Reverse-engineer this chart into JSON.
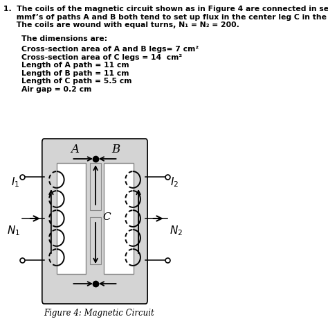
{
  "bg_color": "#ffffff",
  "gray_box_color": "#d4d4d4",
  "figure_caption": "Figure 4: Magnetic Circuit",
  "label_A": "A",
  "label_B": "B",
  "label_C": "C",
  "label_I1": "$I_1$",
  "label_I2": "$I_2$",
  "label_N1": "$N_1$",
  "label_N2": "$N_2$",
  "text_line1": "1.  The coils of the magnetic circuit shown as in Figure 4 are connected in series so that the",
  "text_line2": "     mmf’s of paths A and B both tend to set up flux in the center leg C in the same direction.",
  "text_line3": "     The coils are wound with equal turns, N₁ = N₂ = 200.",
  "text_dims_hdr": "The dimensions are:",
  "text_dims": [
    "Cross-section area of A and B legs= 7 cm²",
    "Cross-section area of C legs = 14  cm²",
    "Length of A path = 11 cm",
    "Length of B path = 11 cm",
    "Length of C path = 5.5 cm",
    "Air gap = 0.2 cm"
  ]
}
